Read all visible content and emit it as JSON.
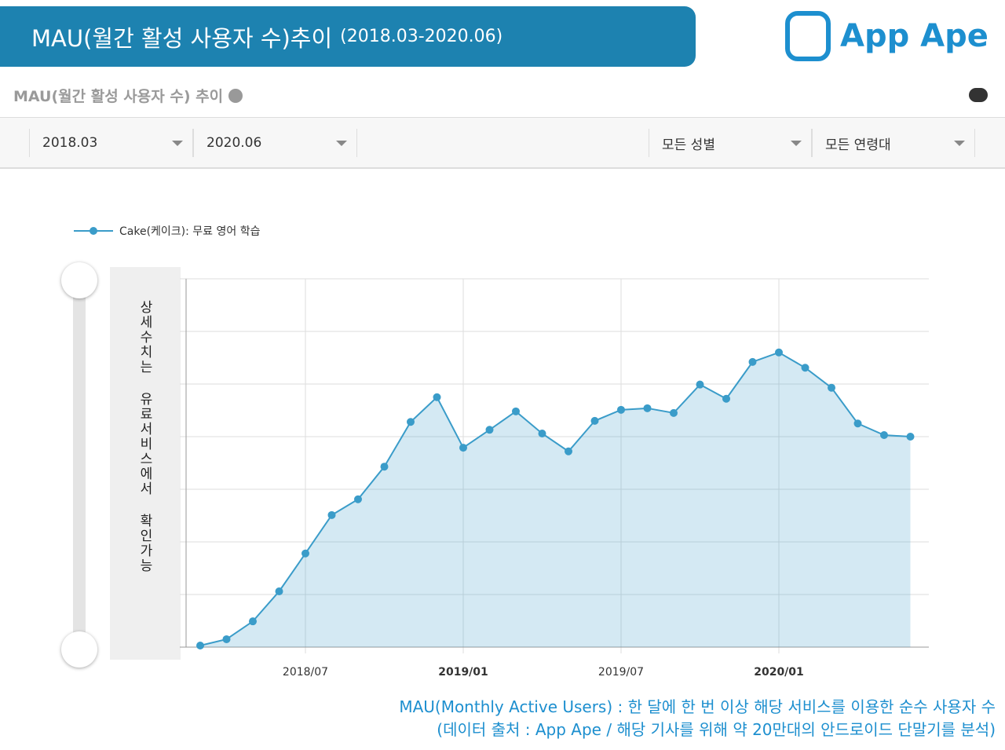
{
  "header": {
    "title": "MAU(월간 활성 사용자 수)추이",
    "period": "(2018.03-2020.06)",
    "logo": "App Ape"
  },
  "panel": {
    "title": "MAU(월간 활성 사용자 수) 추이",
    "filters": [
      "2018.03",
      "2020.06",
      "모든 성별",
      "모든 연령대"
    ],
    "notice": "상세수치는 유료서비스에서 확인가능"
  },
  "chart_data": {
    "type": "line",
    "categories": [
      null,
      null,
      null,
      null,
      "2018/07",
      null,
      null,
      null,
      null,
      null,
      "2019/01",
      null,
      null,
      null,
      null,
      null,
      "2019/07",
      null,
      null,
      null,
      null,
      null,
      "2020/01",
      null,
      null,
      null,
      null,
      null
    ],
    "series": [
      {
        "name": "Cake(케이크): 무료 영어 학습",
        "color": "#3a9cc9",
        "values": [
          0.03,
          0.15,
          0.49,
          1.06,
          1.78,
          2.51,
          2.81,
          3.43,
          4.28,
          4.75,
          3.79,
          4.13,
          4.48,
          4.06,
          3.72,
          4.3,
          4.51,
          4.54,
          4.45,
          4.99,
          4.72,
          5.42,
          5.6,
          5.31,
          4.93,
          4.25,
          4.03,
          4.0
        ]
      }
    ],
    "ylim": [
      0,
      7
    ],
    "yticks": [
      0,
      1,
      2,
      3,
      4,
      5,
      6,
      7
    ],
    "ytick_labels": false,
    "grid": true,
    "area": true
  },
  "footnotes": [
    "MAU(Monthly Active Users) : 한 달에 한 번 이상 해당 서비스를 이용한 순수 사용자 수",
    "(데이터 출처 : App Ape / 해당 기사를 위해 약 20만대의 안드로이드 단말기를 분석)"
  ]
}
